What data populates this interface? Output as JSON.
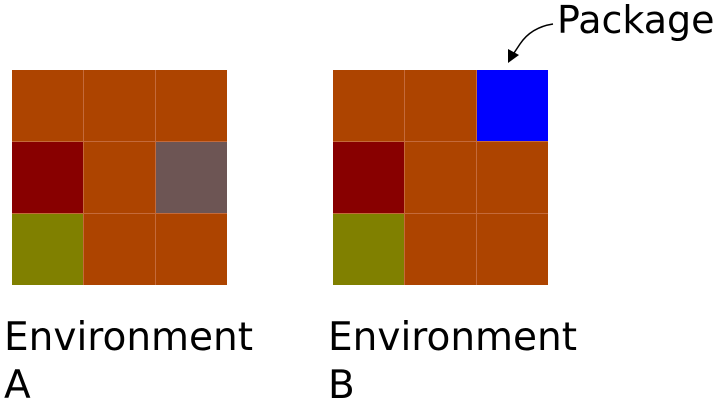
{
  "colors": {
    "floor": "#ad4400",
    "red_tile": "#880000",
    "olive_tile": "#808000",
    "gray_tile": "#6d5554",
    "package_tile": "#0000ff",
    "grid_line": "#c46a3a"
  },
  "environments": [
    {
      "label_line1": "Environment",
      "label_line2": "A",
      "cells": [
        "floor",
        "floor",
        "floor",
        "red_tile",
        "floor",
        "gray_tile",
        "olive_tile",
        "floor",
        "floor"
      ]
    },
    {
      "label_line1": "Environment",
      "label_line2": "B",
      "cells": [
        "floor",
        "floor",
        "package_tile",
        "red_tile",
        "floor",
        "floor",
        "olive_tile",
        "floor",
        "floor"
      ]
    }
  ],
  "annotation": {
    "text": "Package",
    "icon": "arrow-pointer-icon"
  }
}
